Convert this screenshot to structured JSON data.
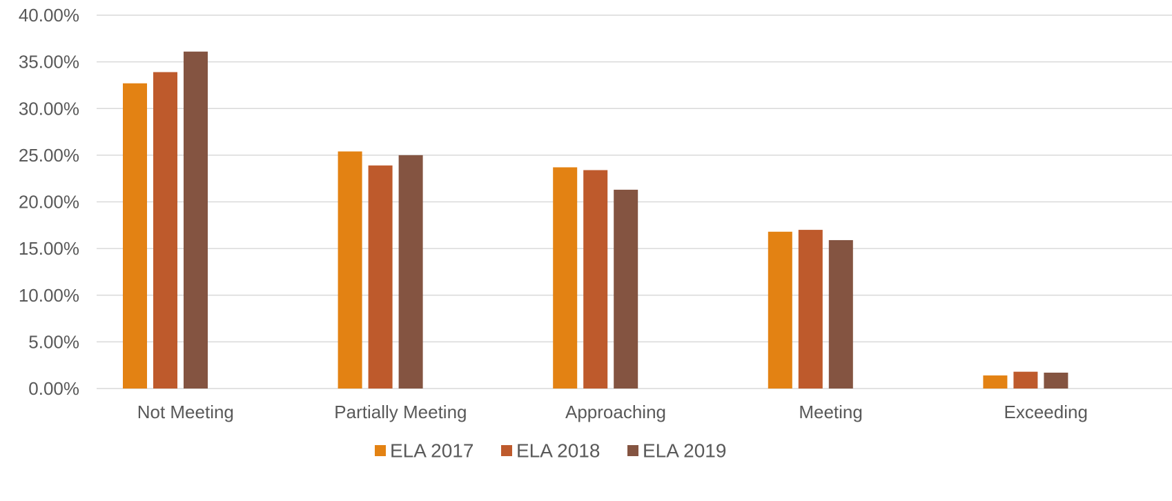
{
  "chart_data": {
    "type": "bar",
    "title": "",
    "xlabel": "",
    "ylabel": "",
    "categories": [
      "Not Meeting",
      "Partially Meeting",
      "Approaching",
      "Meeting",
      "Exceeding"
    ],
    "series": [
      {
        "name": "ELA 2017",
        "color": "#E38213",
        "values": [
          32.7,
          25.4,
          23.7,
          16.8,
          1.4
        ]
      },
      {
        "name": "ELA 2018",
        "color": "#BE5A2C",
        "values": [
          33.9,
          23.9,
          23.4,
          17.0,
          1.8
        ]
      },
      {
        "name": "ELA 2019",
        "color": "#845441",
        "values": [
          36.1,
          25.0,
          21.3,
          15.9,
          1.7
        ]
      }
    ],
    "ylim": [
      0,
      40
    ],
    "yticks": [
      0,
      5,
      10,
      15,
      20,
      25,
      30,
      35,
      40
    ],
    "ytick_labels": [
      "0.00%",
      "5.00%",
      "10.00%",
      "15.00%",
      "20.00%",
      "25.00%",
      "30.00%",
      "35.00%",
      "40.00%"
    ],
    "grid": true,
    "legend_position": "bottom"
  }
}
